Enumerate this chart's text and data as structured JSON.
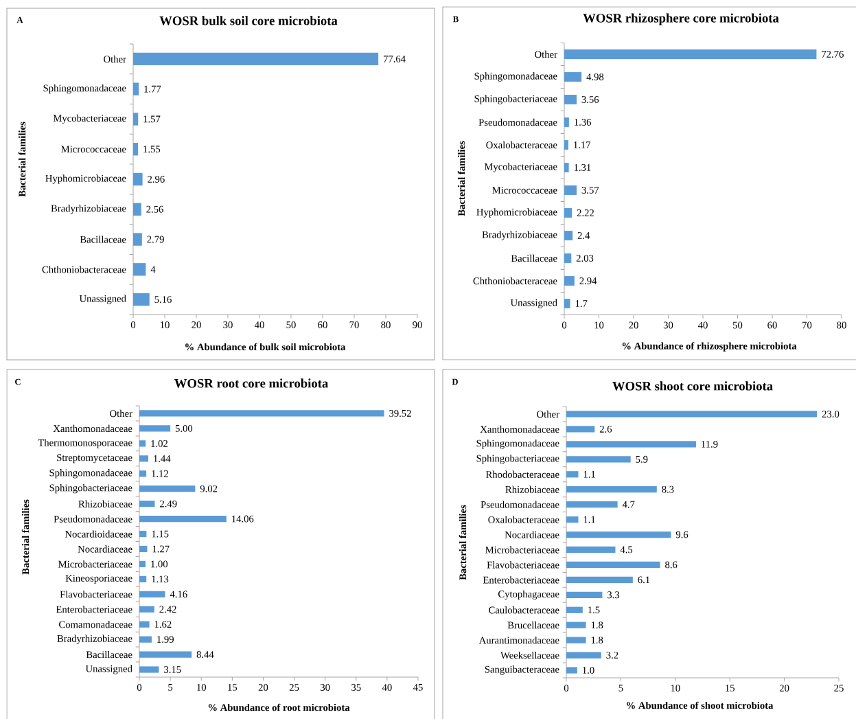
{
  "chart_data": [
    {
      "type": "bar",
      "orientation": "horizontal",
      "title": "WOSR bulk soil core microbiota",
      "xlabel": "% Abundance of bulk soil microbiota",
      "ylabel": "Bacterial families",
      "annotations": [
        "A"
      ],
      "categories": [
        "Other",
        "Sphingomonadaceae",
        "Mycobacteriaceae",
        "Micrococcaceae",
        "Hyphomicrobiaceae",
        "Bradyrhizobiaceae",
        "Bacillaceae",
        "Chthoniobacteraceae",
        "Unassigned"
      ],
      "values": [
        77.64,
        1.77,
        1.57,
        1.55,
        2.96,
        2.56,
        2.79,
        4,
        5.16
      ],
      "value_labels": [
        "77.64",
        "1.77",
        "1.57",
        "1.55",
        "2.96",
        "2.56",
        "2.79",
        "4",
        "5.16"
      ],
      "color": "#5b9bd5",
      "xlim": [
        0,
        90
      ],
      "xticks": [
        0,
        10,
        20,
        30,
        40,
        50,
        60,
        70,
        80,
        90
      ]
    },
    {
      "type": "bar",
      "orientation": "horizontal",
      "title": "WOSR rhizosphere core microbiota",
      "xlabel": "% Abundance of rhizosphere microbiota",
      "ylabel": "Bacterial families",
      "annotations": [
        "B"
      ],
      "categories": [
        "Other",
        "Sphingomonadaceae",
        "Sphingobacteriaceae",
        "Pseudomonadaceae",
        "Oxalobacteraceae",
        "Mycobacteriaceae",
        "Micrococcaceae",
        "Hyphomicrobiaceae",
        "Bradyrhizobiaceae",
        "Bacillaceae",
        "Chthoniobacteraceae",
        "Unassigned"
      ],
      "values": [
        72.76,
        4.98,
        3.56,
        1.36,
        1.17,
        1.31,
        3.57,
        2.22,
        2.4,
        2.03,
        2.94,
        1.7
      ],
      "value_labels": [
        "72.76",
        "4.98",
        "3.56",
        "1.36",
        "1.17",
        "1.31",
        "3.57",
        "2.22",
        "2.4",
        "2.03",
        "2.94",
        "1.7"
      ],
      "color": "#5b9bd5",
      "xlim": [
        0,
        80
      ],
      "xticks": [
        0,
        10,
        20,
        30,
        40,
        50,
        60,
        70,
        80
      ]
    },
    {
      "type": "bar",
      "orientation": "horizontal",
      "title": "WOSR root core microbiota",
      "xlabel": "% Abundance of root microbiota",
      "ylabel": "Bacterial families",
      "annotations": [
        "C"
      ],
      "categories": [
        "Other",
        "Xanthomonadaceae",
        "Thermomonosporaceae",
        "Streptomycetaceae",
        "Sphingomonadaceae",
        "Sphingobacteriaceae",
        "Rhizobiaceae",
        "Pseudomonadaceae",
        "Nocardioidaceae",
        "Nocardiaceae",
        "Microbacteriaceae",
        "Kineosporiaceae",
        "Flavobacteriaceae",
        "Enterobacteriaceae",
        "Comamonadaceae",
        "Bradyrhizobiaceae",
        "Bacillaceae",
        "Unassigned"
      ],
      "values": [
        39.52,
        5.0,
        1.02,
        1.44,
        1.12,
        9.02,
        2.49,
        14.06,
        1.15,
        1.27,
        1.0,
        1.13,
        4.16,
        2.42,
        1.62,
        1.99,
        8.44,
        3.15
      ],
      "value_labels": [
        "39.52",
        "5.00",
        "1.02",
        "1.44",
        "1.12",
        "9.02",
        "2.49",
        "14.06",
        "1.15",
        "1.27",
        "1.00",
        "1.13",
        "4.16",
        "2.42",
        "1.62",
        "1.99",
        "8.44",
        "3.15"
      ],
      "color": "#5b9bd5",
      "xlim": [
        0,
        45
      ],
      "xticks": [
        0,
        5,
        10,
        15,
        20,
        25,
        30,
        35,
        40,
        45
      ]
    },
    {
      "type": "bar",
      "orientation": "horizontal",
      "title": "WOSR shoot core microbiota",
      "xlabel": "% Abundance of shoot microbiota",
      "ylabel": "Bacterial families",
      "annotations": [
        "D"
      ],
      "categories": [
        "Other",
        "Xanthomonadaceae",
        "Sphingomonadaceae",
        "Sphingobacteriaceae",
        "Rhodobacteraceae",
        "Rhizobiaceae",
        "Pseudomonadaceae",
        "Oxalobacteraceae",
        "Nocardiaceae",
        "Microbacteriaceae",
        "Flavobacteriaceae",
        "Enterobacteriaceae",
        "Cytophagaceae",
        "Caulobacteraceae",
        "Brucellaceae",
        "Aurantimonadaceae",
        "Weeksellaceae",
        "Sanguibacteraceae"
      ],
      "values": [
        23.0,
        2.6,
        11.9,
        5.9,
        1.1,
        8.3,
        4.7,
        1.1,
        9.6,
        4.5,
        8.6,
        6.1,
        3.3,
        1.5,
        1.8,
        1.8,
        3.2,
        1.0
      ],
      "value_labels": [
        "23.0",
        "2.6",
        "11.9",
        "5.9",
        "1.1",
        "8.3",
        "4.7",
        "1.1",
        "9.6",
        "4.5",
        "8.6",
        "6.1",
        "3.3",
        "1.5",
        "1.8",
        "1.8",
        "3.2",
        "1.0"
      ],
      "color": "#5b9bd5",
      "xlim": [
        0,
        25
      ],
      "xticks": [
        0,
        5,
        10,
        15,
        20,
        25
      ]
    }
  ]
}
